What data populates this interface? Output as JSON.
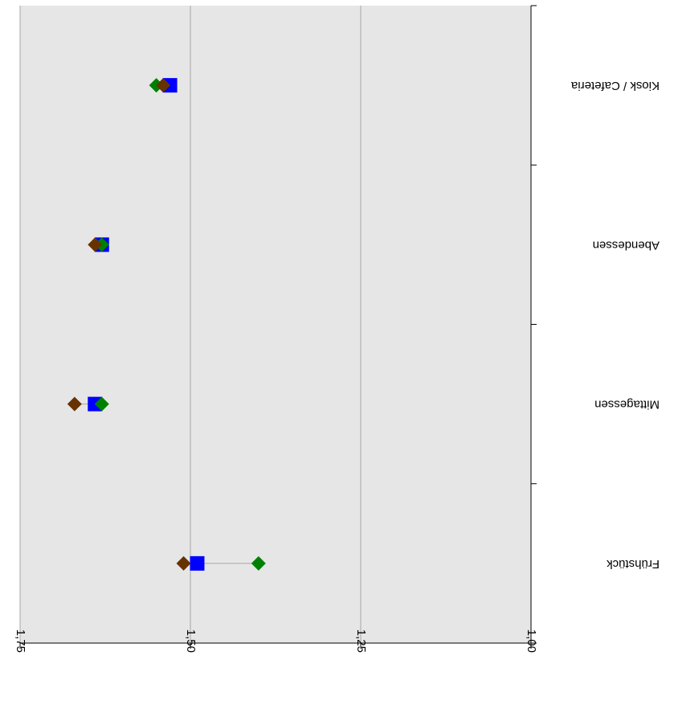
{
  "chart_data": {
    "type": "scatter",
    "orientation": "rotated-180",
    "title": "",
    "xlabel": "",
    "ylabel": "",
    "categories": [
      "Frühstück",
      "Mittagessen",
      "Abendessen",
      "Kiosk / Cafeteria"
    ],
    "value_axis": {
      "range": [
        1.0,
        1.75
      ],
      "ticks": [
        "1,00",
        "1,25",
        "1,50",
        "1,75"
      ],
      "tick_values": [
        1.0,
        1.25,
        1.5,
        1.75
      ],
      "grid": true
    },
    "series": [
      {
        "marker": "square",
        "color": "#0000FF",
        "values": [
          1.49,
          1.64,
          1.63,
          1.53
        ]
      },
      {
        "marker": "diamond",
        "color": "#008000",
        "values": [
          1.4,
          1.63,
          1.63,
          1.55
        ]
      },
      {
        "marker": "diamond",
        "color": "#663300",
        "values": [
          1.51,
          1.67,
          1.64,
          1.54
        ]
      }
    ],
    "legend": "none",
    "colors": {
      "plot_background": "#E6E6E6",
      "gridline": "#A6A6A6",
      "connector": "#A6A6A6"
    }
  }
}
